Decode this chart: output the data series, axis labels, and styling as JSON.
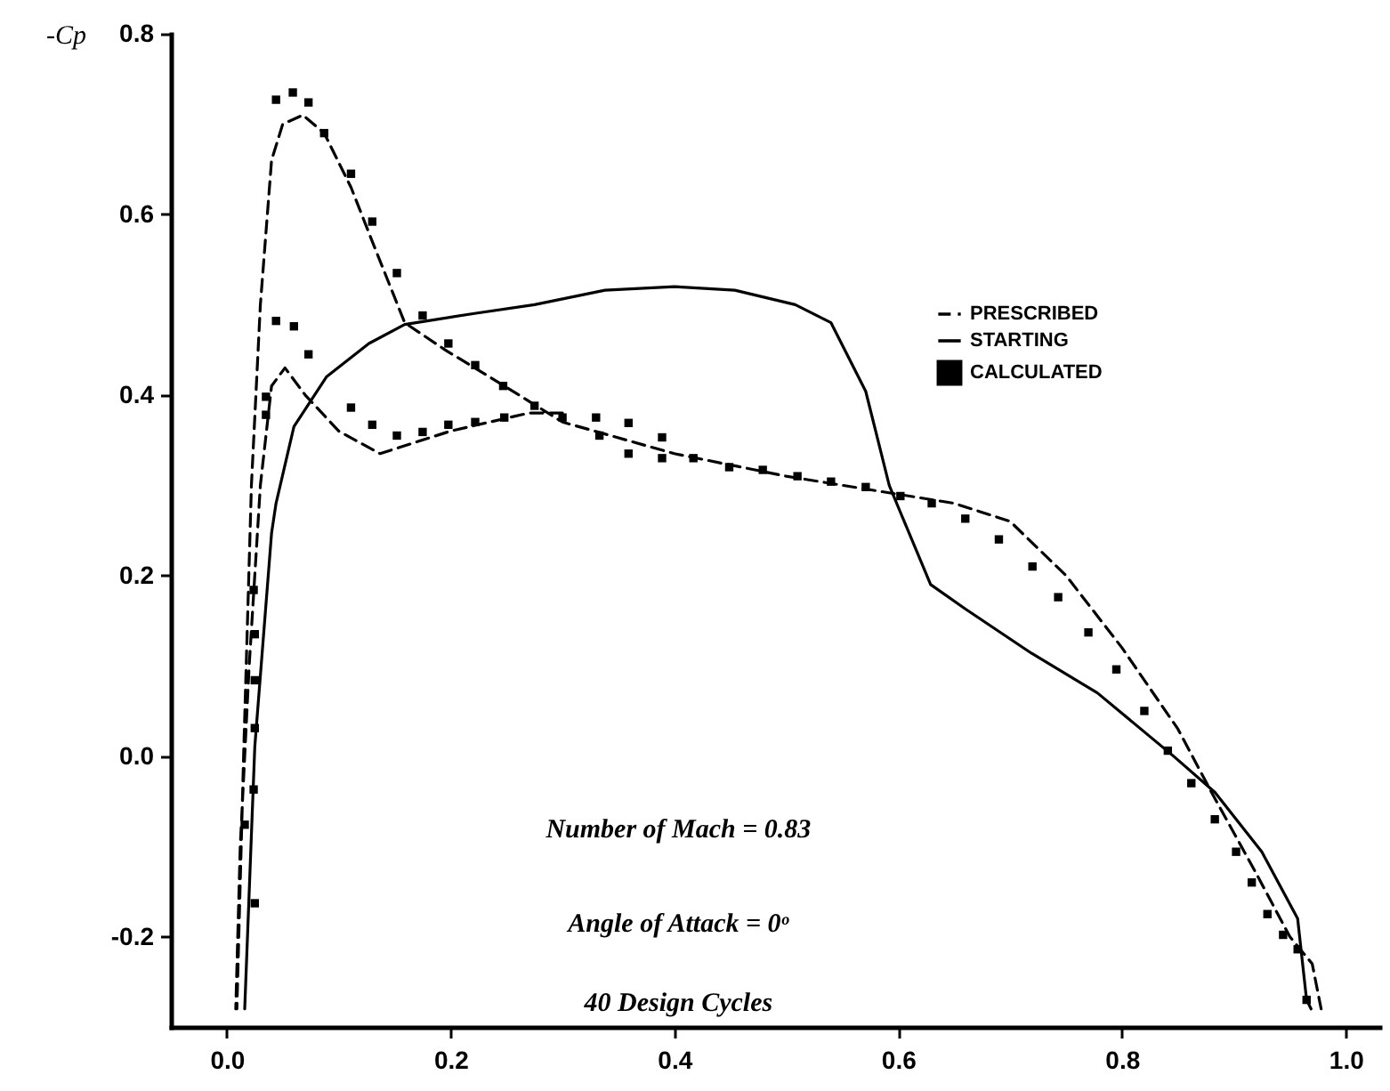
{
  "chart_data": {
    "type": "line",
    "ylabel": "-Cp",
    "xlim": [
      -0.05,
      1.03
    ],
    "ylim": [
      -0.3,
      0.8
    ],
    "xticks": [
      {
        "value": 0,
        "label": "0.0"
      },
      0.2,
      0.4,
      0.6,
      0.8,
      {
        "value": 1,
        "label": "1.0"
      }
    ],
    "yticks": [
      -0.2,
      {
        "value": 0,
        "label": "0.0"
      },
      0.2,
      0.4,
      0.6,
      0.8
    ],
    "grid": false,
    "legend": "top right",
    "annotations": [
      "Number of Mach = 0.83",
      "Angle of Attack = 0ᵒ",
      "40 Design Cycles"
    ],
    "series": [
      {
        "name": "PRESCRIBED",
        "type": "line",
        "line_style": "dashed",
        "color": "#000000",
        "x": [
          0.3,
          0.27,
          0.2,
          0.137,
          0.1,
          0.07,
          0.052,
          0.04,
          0.03,
          0.02,
          0.012,
          0.008,
          0.009,
          0.015,
          0.022,
          0.03,
          0.04,
          0.05,
          0.068,
          0.087,
          0.111,
          0.13,
          0.159,
          0.195,
          0.248,
          0.3,
          0.4,
          0.5,
          0.6,
          0.65,
          0.7,
          0.75,
          0.8,
          0.85,
          0.88,
          0.92,
          0.95,
          0.97,
          0.978
        ],
        "values": [
          0.38,
          0.38,
          0.36,
          0.335,
          0.36,
          0.4,
          0.43,
          0.41,
          0.3,
          0.1,
          -0.1,
          -0.28,
          -0.28,
          0.0,
          0.3,
          0.5,
          0.66,
          0.7,
          0.71,
          0.69,
          0.63,
          0.57,
          0.48,
          0.45,
          0.41,
          0.37,
          0.335,
          0.31,
          0.29,
          0.28,
          0.26,
          0.2,
          0.12,
          0.03,
          -0.04,
          -0.13,
          -0.2,
          -0.23,
          -0.28
        ]
      },
      {
        "name": "STARTING",
        "type": "line",
        "line_style": "solid",
        "color": "#000000",
        "x": [
          0.016,
          0.025,
          0.04,
          0.044,
          0.06,
          0.089,
          0.127,
          0.159,
          0.22,
          0.275,
          0.338,
          0.4,
          0.454,
          0.508,
          0.54,
          0.571,
          0.592,
          0.603,
          0.629,
          0.66,
          0.719,
          0.778,
          0.846,
          0.883,
          0.925,
          0.957,
          0.965,
          0.969
        ],
        "values": [
          -0.28,
          0.01,
          0.247,
          0.28,
          0.365,
          0.42,
          0.457,
          0.478,
          0.49,
          0.5,
          0.516,
          0.52,
          0.516,
          0.5,
          0.48,
          0.404,
          0.3,
          0.267,
          0.19,
          0.163,
          0.114,
          0.07,
          0.0,
          -0.04,
          -0.106,
          -0.18,
          -0.27,
          -0.28
        ]
      },
      {
        "name": "CALCULATED",
        "type": "scatter",
        "marker": "square",
        "color": "#000000",
        "x": [
          0.044,
          0.059,
          0.073,
          0.087,
          0.111,
          0.13,
          0.152,
          0.175,
          0.198,
          0.222,
          0.247,
          0.275,
          0.3,
          0.33,
          0.359,
          0.389,
          0.044,
          0.06,
          0.073,
          0.111,
          0.13,
          0.152,
          0.175,
          0.198,
          0.222,
          0.248,
          0.333,
          0.359,
          0.389,
          0.417,
          0.449,
          0.479,
          0.51,
          0.54,
          0.571,
          0.602,
          0.63,
          0.66,
          0.69,
          0.72,
          0.743,
          0.77,
          0.795,
          0.82,
          0.841,
          0.862,
          0.883,
          0.902,
          0.916,
          0.93,
          0.944,
          0.957,
          0.965,
          0.035,
          0.035,
          0.024,
          0.025,
          0.025,
          0.025,
          0.024,
          0.016,
          0.025
        ],
        "values": [
          0.727,
          0.735,
          0.724,
          0.69,
          0.645,
          0.592,
          0.535,
          0.488,
          0.457,
          0.433,
          0.41,
          0.388,
          0.375,
          0.375,
          0.369,
          0.353,
          0.482,
          0.476,
          0.445,
          0.386,
          0.367,
          0.355,
          0.359,
          0.367,
          0.37,
          0.375,
          0.355,
          0.335,
          0.33,
          0.33,
          0.32,
          0.317,
          0.31,
          0.304,
          0.298,
          0.288,
          0.28,
          0.263,
          0.24,
          0.21,
          0.176,
          0.137,
          0.096,
          0.05,
          0.006,
          -0.03,
          -0.07,
          -0.106,
          -0.14,
          -0.175,
          -0.198,
          -0.214,
          -0.27,
          0.398,
          0.378,
          0.184,
          0.135,
          0.084,
          0.031,
          -0.037,
          -0.076,
          -0.163
        ]
      }
    ]
  }
}
